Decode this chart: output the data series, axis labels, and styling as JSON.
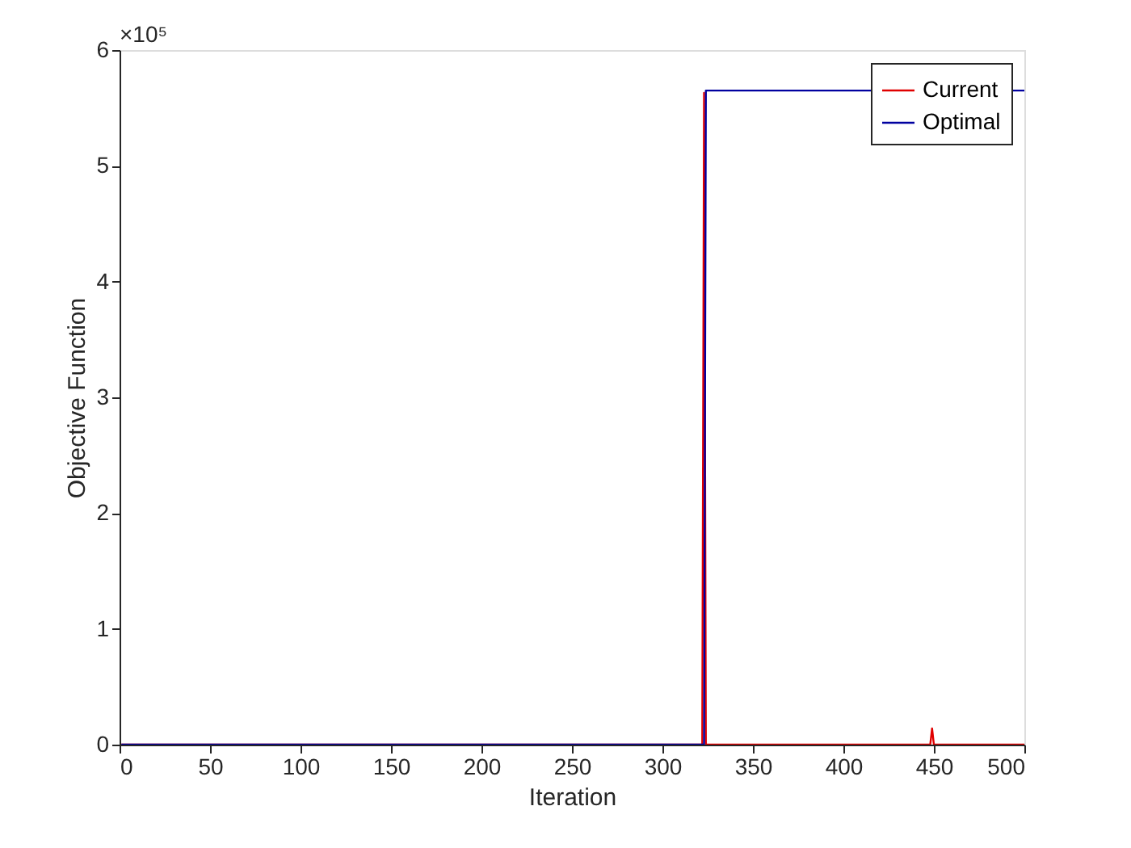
{
  "chart_data": {
    "type": "line",
    "xlabel": "Iteration",
    "ylabel": "Objective Function",
    "annotations": [
      "×10⁵"
    ],
    "series": [
      {
        "name": "Current",
        "color": "#e00000",
        "x": [
          1,
          322,
          323,
          324,
          448,
          449,
          450,
          500
        ],
        "values": [
          0,
          0,
          5.63,
          0,
          0,
          0.14,
          0,
          0
        ]
      },
      {
        "name": "Optimal",
        "color": "#0000a0",
        "x": [
          1,
          323,
          324,
          500
        ],
        "values": [
          0,
          0,
          5.65,
          5.65
        ]
      }
    ],
    "xlim": [
      0,
      500
    ],
    "xticks": [
      0,
      50,
      100,
      150,
      200,
      250,
      300,
      350,
      400,
      450,
      500
    ],
    "ylim": [
      0,
      6
    ],
    "yticks": [
      0,
      1,
      2,
      3,
      4,
      5,
      6
    ],
    "grid": false,
    "legend": "top right",
    "marker": "none",
    "line_style": "solid"
  }
}
